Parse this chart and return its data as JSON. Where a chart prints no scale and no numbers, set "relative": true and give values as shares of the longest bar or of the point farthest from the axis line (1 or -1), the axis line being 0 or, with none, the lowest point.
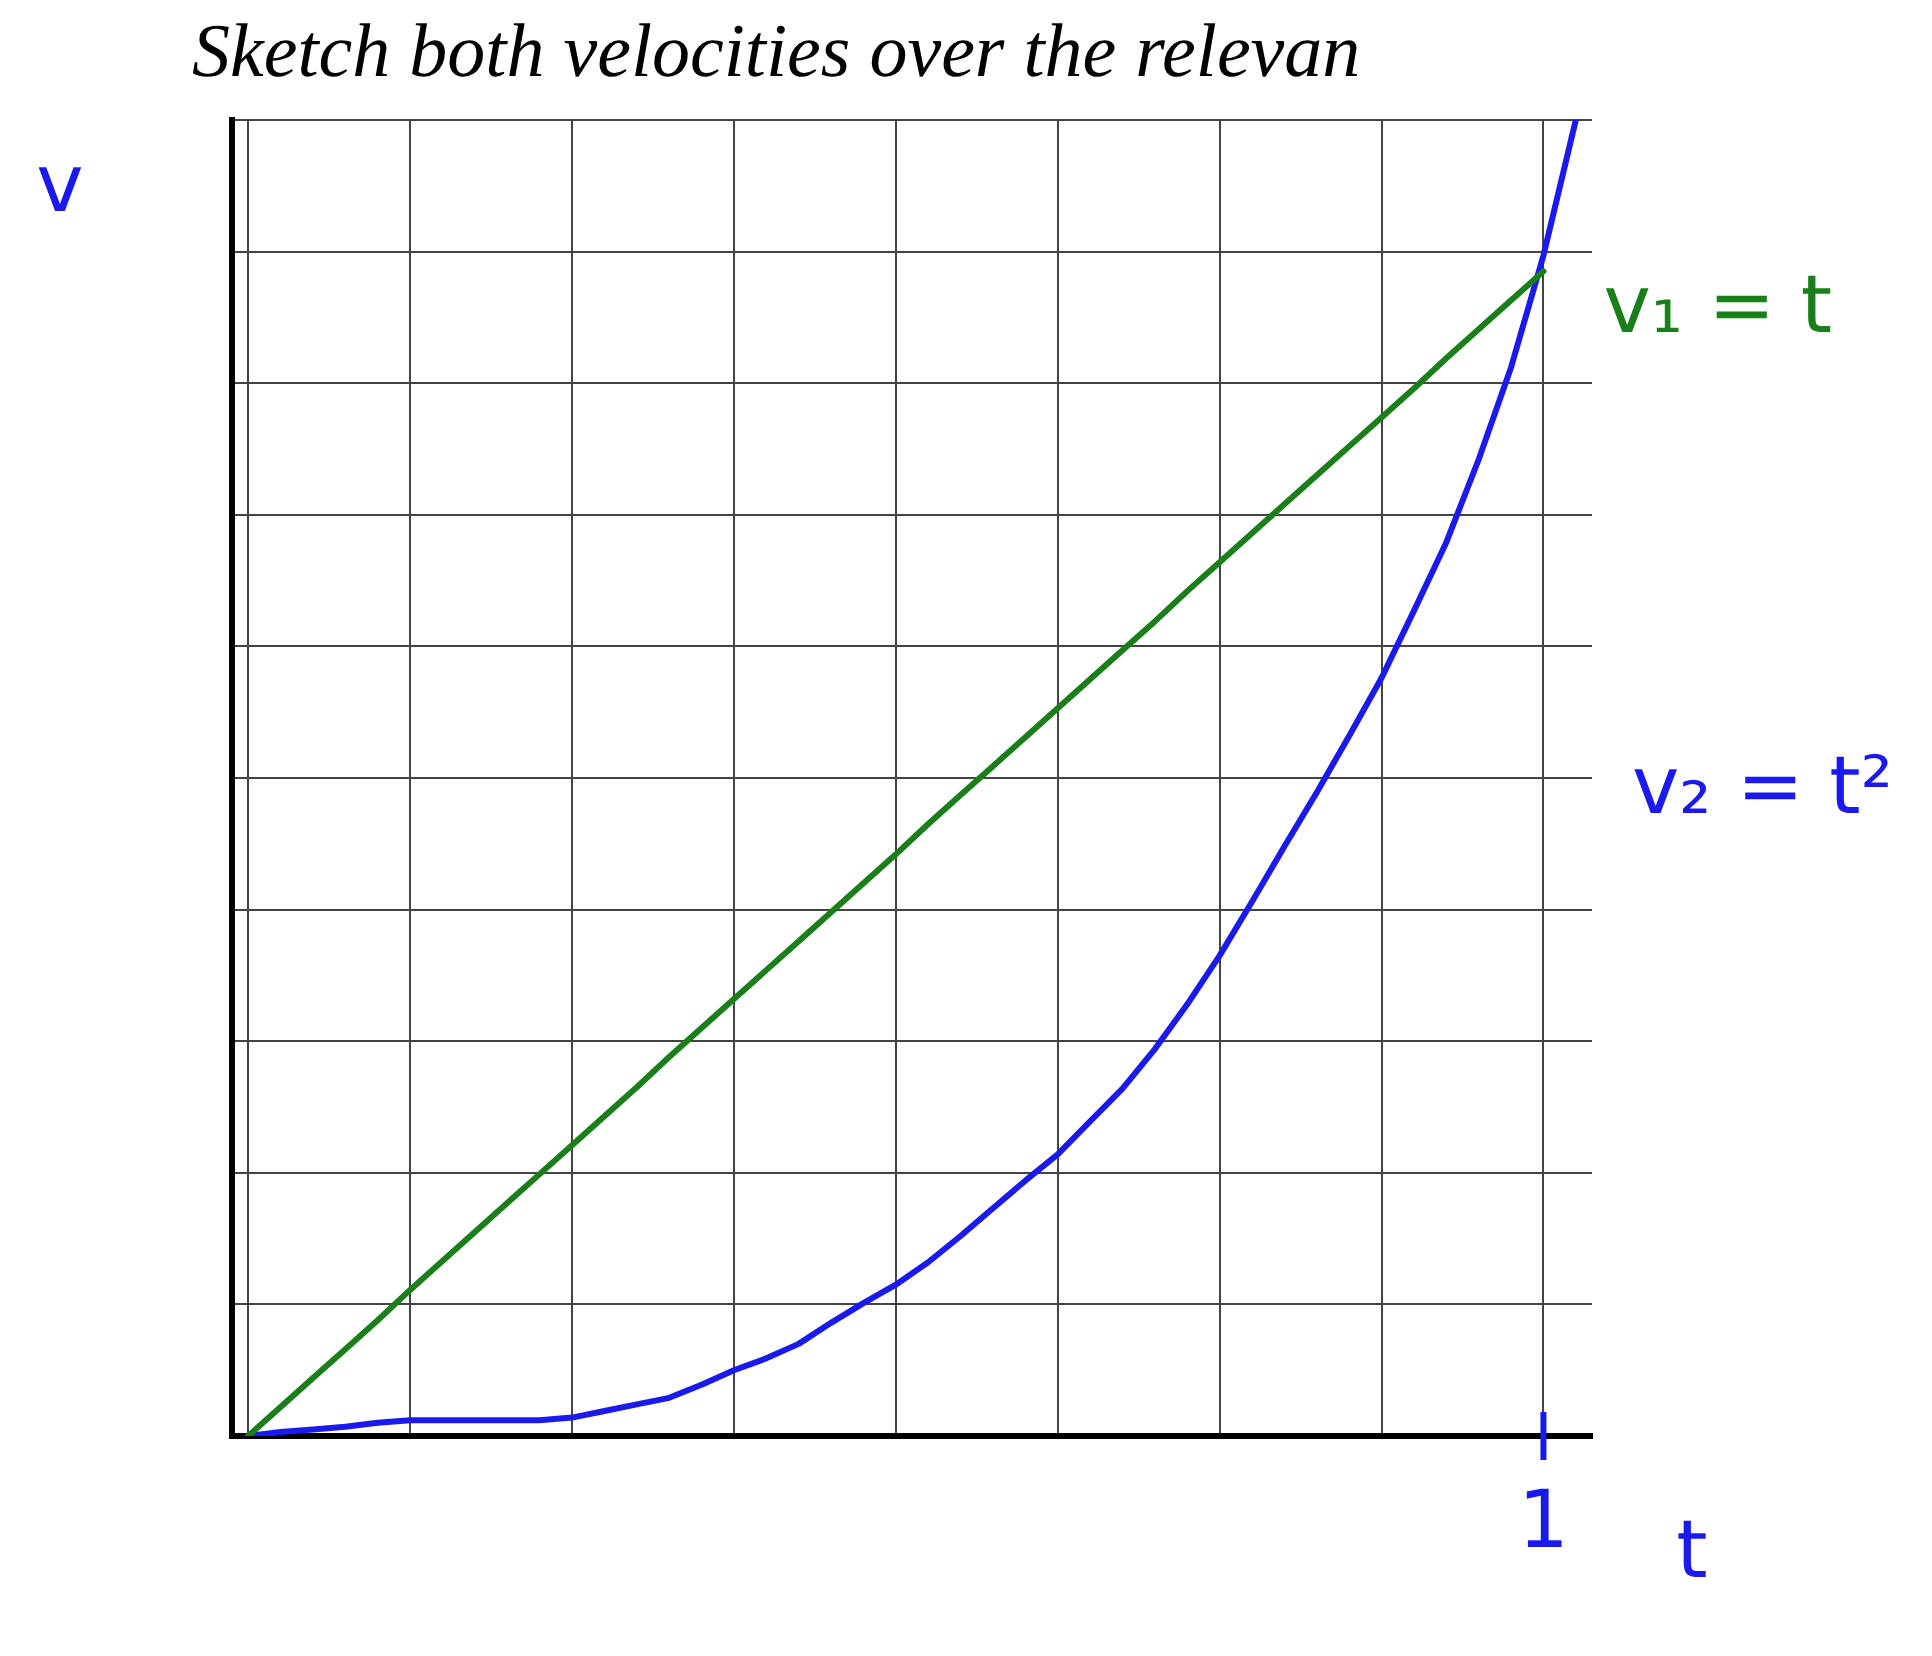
{
  "chart_data": {
    "type": "line",
    "title": "Sketch both velocities over the relevan",
    "xlabel": "t",
    "ylabel": "v",
    "relative": true,
    "categories": [
      null,
      null,
      null,
      null,
      null,
      null,
      null,
      null,
      null,
      null,
      null,
      null,
      null,
      null,
      null,
      null,
      null,
      null,
      null,
      null,
      null,
      null,
      null,
      null,
      null,
      null,
      null,
      null,
      null,
      null,
      null,
      null,
      null,
      null,
      null,
      null,
      null,
      null,
      null,
      null,
      null,
      null
    ],
    "annotations": [
      "1"
    ],
    "grid": true,
    "marker": "none",
    "line_style": "solid",
    "series": [
      {
        "name": "v₁ = t",
        "color": "#1a7f1a",
        "values": [
          0,
          0.022,
          0.044,
          0.066,
          0.088,
          0.111,
          0.133,
          0.155,
          0.177,
          0.199,
          0.221,
          0.243,
          0.265,
          0.288,
          0.31,
          0.332,
          0.354,
          0.376,
          0.398,
          0.42,
          0.442,
          0.465,
          0.487,
          0.509,
          0.531,
          0.553,
          0.575,
          0.597,
          0.619,
          0.642,
          0.664,
          0.686,
          0.708,
          0.73,
          0.752,
          0.774,
          0.796,
          0.819,
          0.841,
          0.863,
          0.885,
          null
        ]
      },
      {
        "name": "v₂ = t²",
        "color": "#1a1aee",
        "values": [
          0,
          0.003,
          0.005,
          0.007,
          0.01,
          0.012,
          0.012,
          0.012,
          0.012,
          0.012,
          0.014,
          0.019,
          0.024,
          0.029,
          0.039,
          0.05,
          0.059,
          0.07,
          0.086,
          0.101,
          0.115,
          0.132,
          0.152,
          0.173,
          0.194,
          0.214,
          0.239,
          0.264,
          0.294,
          0.328,
          0.365,
          0.406,
          0.448,
          0.489,
          0.532,
          0.576,
          0.627,
          0.679,
          0.742,
          0.812,
          0.897,
          1
        ]
      }
    ]
  }
}
